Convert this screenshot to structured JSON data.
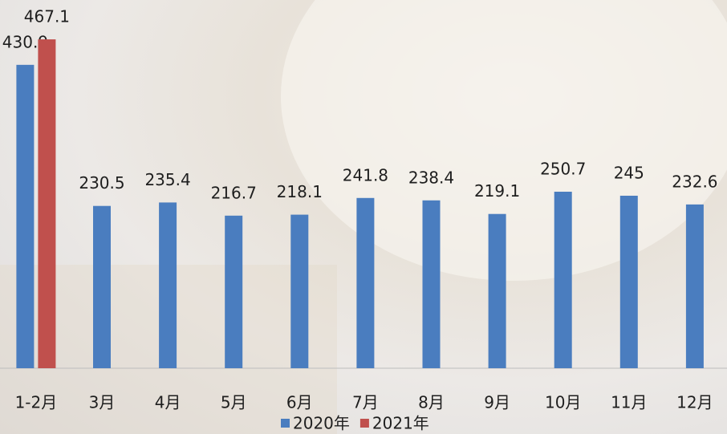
{
  "chart_data": {
    "type": "bar",
    "categories": [
      "1-2月",
      "3月",
      "4月",
      "5月",
      "6月",
      "7月",
      "8月",
      "9月",
      "10月",
      "11月",
      "12月"
    ],
    "series": [
      {
        "name": "2020年",
        "color": "#4a7dbf",
        "values": [
          430.9,
          230.5,
          235.4,
          216.7,
          218.1,
          241.8,
          238.4,
          219.1,
          250.7,
          245,
          232.6
        ]
      },
      {
        "name": "2021年",
        "color": "#c0504d",
        "values": [
          467.1,
          null,
          null,
          null,
          null,
          null,
          null,
          null,
          null,
          null,
          null
        ]
      }
    ],
    "ylim": [
      0,
      523
    ],
    "legend": "bottom"
  }
}
